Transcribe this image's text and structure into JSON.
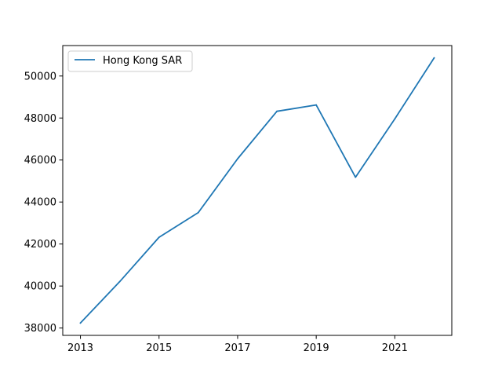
{
  "chart_data": {
    "type": "line",
    "title": "",
    "xlabel": "",
    "ylabel": "",
    "x": [
      2013,
      2014,
      2015,
      2016,
      2017,
      2018,
      2019,
      2020,
      2021,
      2022
    ],
    "series": [
      {
        "name": "Hong Kong SAR",
        "color": "#1f77b4",
        "values": [
          38240,
          40210,
          42320,
          43500,
          46060,
          48320,
          48620,
          45180,
          47960,
          50860
        ]
      }
    ],
    "xlim": [
      2012.55,
      2022.45
    ],
    "ylim": [
      37650,
      51450
    ],
    "xticks": [
      "2013",
      "2015",
      "2017",
      "2019",
      "2021"
    ],
    "yticks": [
      "38000",
      "40000",
      "42000",
      "44000",
      "46000",
      "48000",
      "50000"
    ],
    "grid": false,
    "legend_position": "upper-left"
  }
}
